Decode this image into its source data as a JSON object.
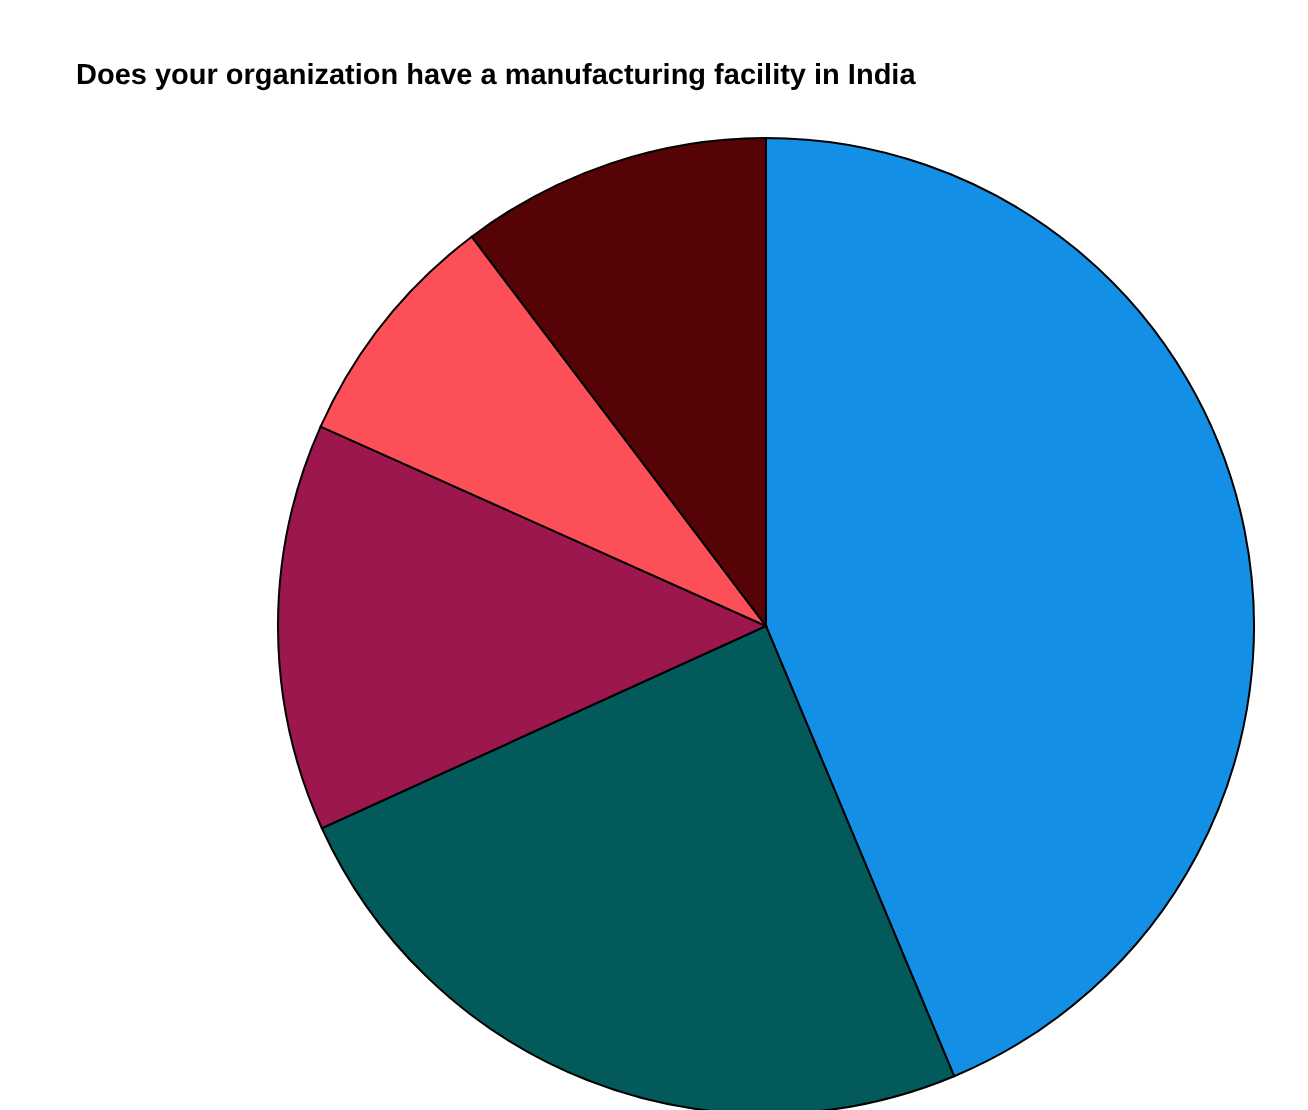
{
  "chart_data": {
    "type": "pie",
    "title": "Does your organization have a manufacturing facility in India",
    "categories": [
      null,
      null,
      null,
      null,
      null
    ],
    "values": [
      43.7,
      24.5,
      13.5,
      8,
      10.3
    ],
    "colors": [
      "#1390e6",
      "#025a5a",
      "#9b174e",
      "#fd4f57",
      "#550306"
    ],
    "legend": false
  }
}
